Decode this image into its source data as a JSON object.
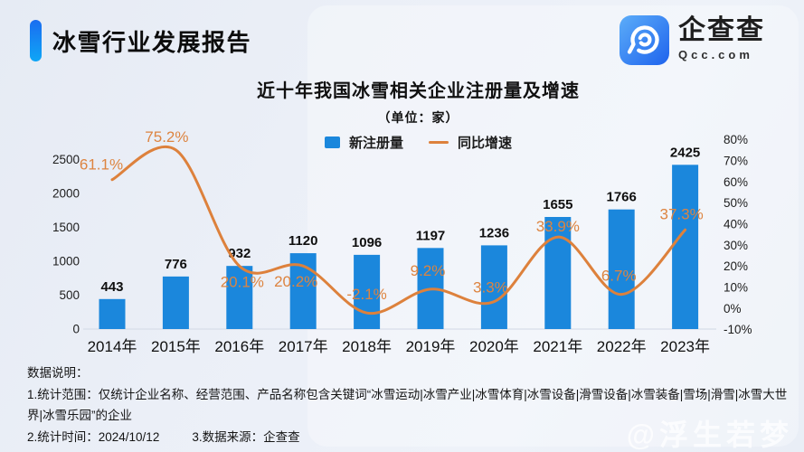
{
  "header": {
    "title": "冰雪行业发展报告"
  },
  "brand": {
    "name": "企查查",
    "domain": "Qcc.com"
  },
  "chart_data": {
    "type": "bar+line",
    "title": "近十年我国冰雪相关企业注册量及增速",
    "subtitle": "（单位：家）",
    "categories": [
      "2014年",
      "2015年",
      "2016年",
      "2017年",
      "2018年",
      "2019年",
      "2020年",
      "2021年",
      "2022年",
      "2023年"
    ],
    "series": [
      {
        "name": "新注册量",
        "type": "bar",
        "axis": "left",
        "color": "#1b87dc",
        "values": [
          443,
          776,
          932,
          1120,
          1096,
          1197,
          1236,
          1655,
          1766,
          2425
        ]
      },
      {
        "name": "同比增速",
        "type": "line",
        "axis": "right",
        "color": "#dd813c",
        "values": [
          61.1,
          75.2,
          20.1,
          20.2,
          -2.1,
          9.2,
          3.3,
          33.9,
          6.7,
          37.3
        ],
        "labels": [
          "61.1%",
          "75.2%",
          "20.1%",
          "20.2%",
          "-2.1%",
          "9.2%",
          "3.3%",
          "33.9%",
          "6.7%",
          "37.3%"
        ]
      }
    ],
    "legend": [
      {
        "label": "新注册量",
        "color": "#1b87dc"
      },
      {
        "label": "同比增速",
        "color": "#dd813c"
      }
    ],
    "left_axis": {
      "ticks": [
        0,
        500,
        1000,
        1500,
        2000,
        2500
      ],
      "min": 0,
      "max": 2500
    },
    "right_axis": {
      "ticks": [
        -10,
        0,
        10,
        20,
        30,
        40,
        50,
        60,
        70,
        80
      ],
      "labels": [
        "-10%",
        "0%",
        "10%",
        "20%",
        "30%",
        "40%",
        "50%",
        "60%",
        "70%",
        "80%"
      ],
      "min": -10,
      "max": 80
    },
    "grid": false,
    "legend_position": "top-center",
    "value_label_color": "#0f0f0f",
    "pct_label_color": "#dd8440"
  },
  "footer": {
    "heading": "数据说明：",
    "note1": "1.统计范围：仅统计企业名称、经营范围、产品名称包含关键词“冰雪运动|冰雪产业|冰雪体育|冰雪设备|滑雪设备|冰雪装备|雪场|滑雪|冰雪大世界|冰雪乐园”的企业",
    "note2": "2.统计时间：2024/10/12",
    "note3": "3.数据来源：企查查"
  },
  "watermark": "@浮生若梦"
}
